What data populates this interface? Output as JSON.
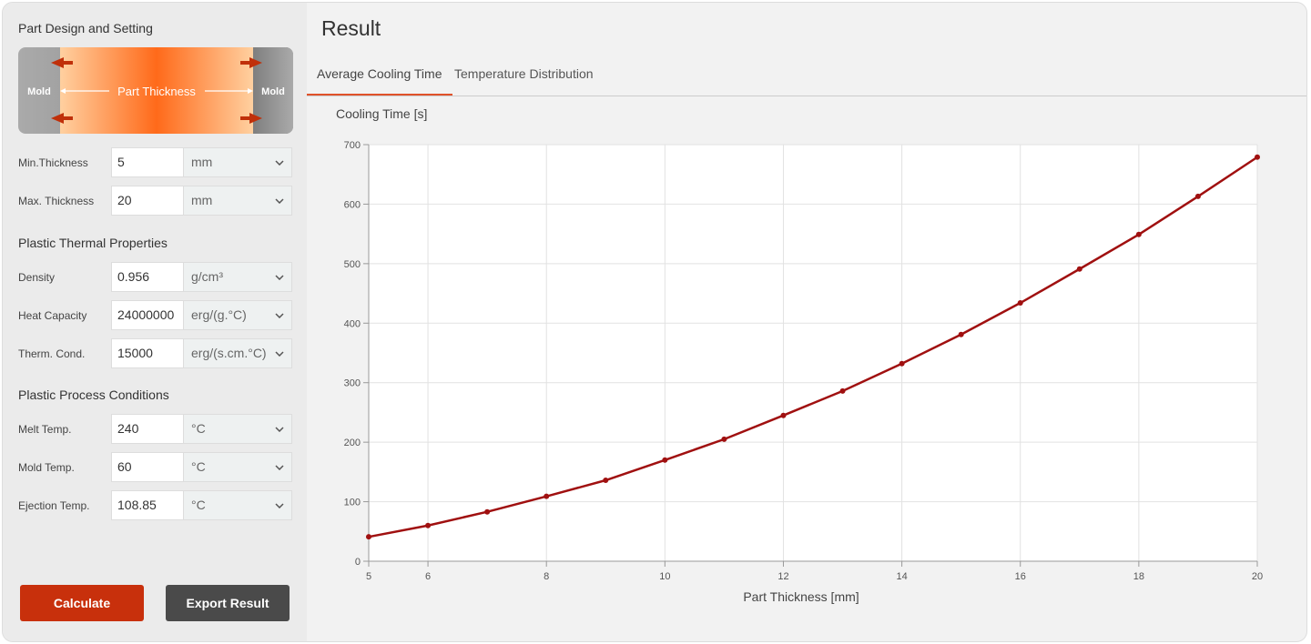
{
  "design": {
    "title": "Part Design and Setting",
    "diagram": {
      "mold_left": "Mold",
      "label": "Part Thickness",
      "mold_right": "Mold"
    },
    "fields": [
      {
        "label": "Min.Thickness",
        "value": "5",
        "unit": "mm"
      },
      {
        "label": "Max. Thickness",
        "value": "20",
        "unit": "mm"
      }
    ]
  },
  "thermal": {
    "title": "Plastic Thermal Properties",
    "fields": [
      {
        "label": "Density",
        "value": "0.956",
        "unit": "g/cm³"
      },
      {
        "label": "Heat Capacity",
        "value": "24000000",
        "unit": "erg/(g.°C)"
      },
      {
        "label": "Therm. Cond.",
        "value": "15000",
        "unit": "erg/(s.cm.°C)"
      }
    ]
  },
  "process": {
    "title": "Plastic Process Conditions",
    "fields": [
      {
        "label": "Melt Temp.",
        "value": "240",
        "unit": "°C"
      },
      {
        "label": "Mold Temp.",
        "value": "60",
        "unit": "°C"
      },
      {
        "label": "Ejection Temp.",
        "value": "108.85",
        "unit": "°C"
      }
    ]
  },
  "buttons": [
    "Calculate",
    "Export Result"
  ],
  "result": {
    "title": "Result",
    "tabs": [
      "Average Cooling Time",
      "Temperature Distribution"
    ]
  },
  "chart_data": {
    "type": "line",
    "y_label": "Cooling Time [s]",
    "x_label": "Part Thickness [mm]",
    "x": [
      5,
      6,
      7,
      8,
      9,
      10,
      11,
      12,
      13,
      14,
      15,
      16,
      17,
      18,
      19,
      20
    ],
    "values": [
      41,
      60,
      83,
      109,
      136,
      170,
      205,
      245,
      286,
      332,
      381,
      434,
      491,
      549,
      613,
      679
    ],
    "color": "#a01010",
    "xlim": [
      5,
      20
    ],
    "xticks": [
      5,
      6,
      8,
      10,
      12,
      14,
      16,
      18,
      20
    ],
    "ylim": [
      0,
      700
    ],
    "yticks": [
      0,
      100,
      200,
      300,
      400,
      500,
      600,
      700
    ],
    "grid": true
  }
}
